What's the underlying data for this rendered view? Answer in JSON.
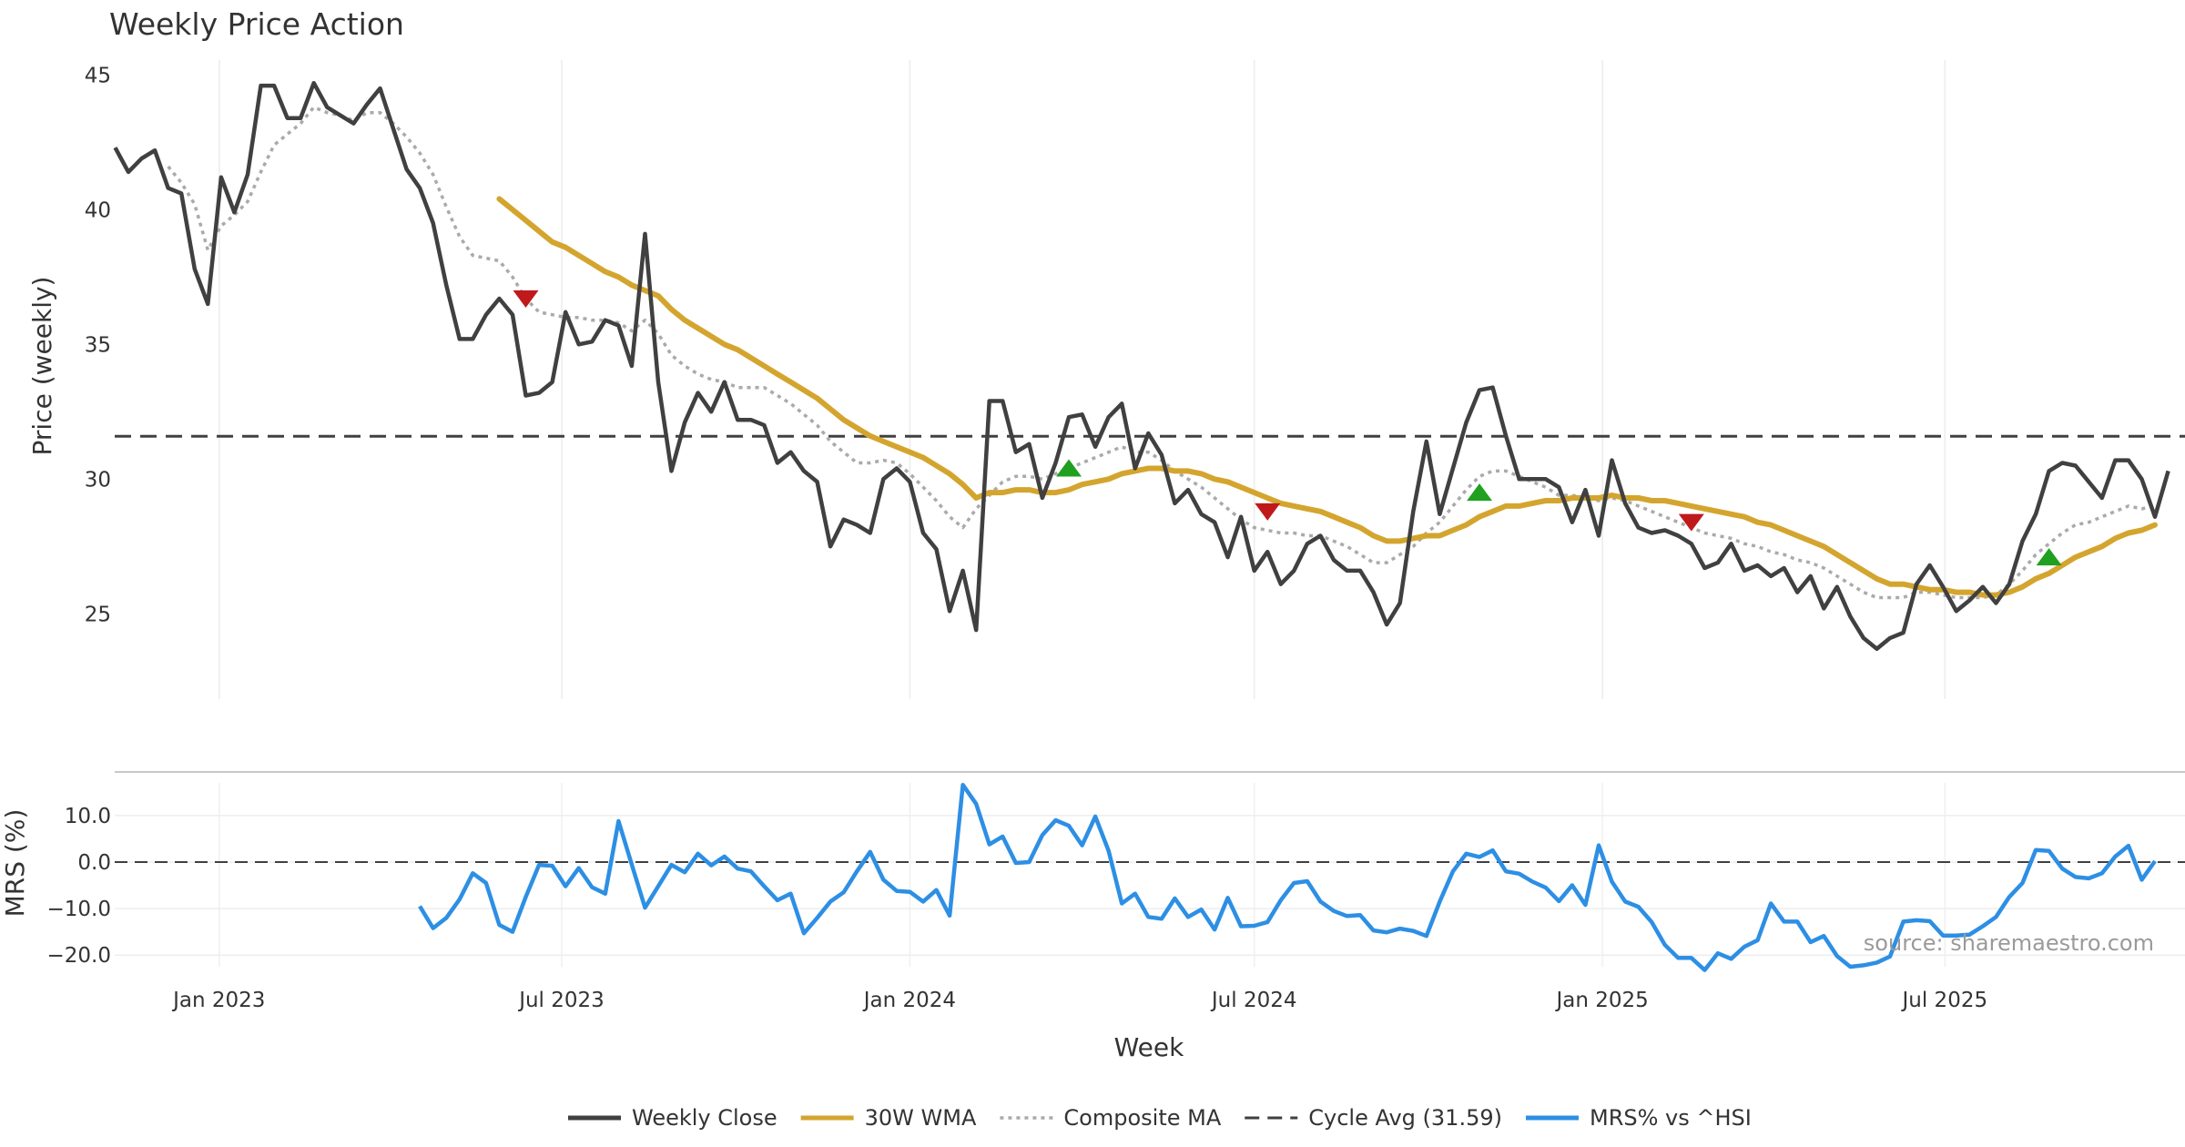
{
  "chart_data": [
    {
      "type": "line",
      "title": "Weekly Price Action",
      "xlabel": "",
      "ylabel": "Price (weekly)",
      "ylim": [
        22.5,
        47
      ],
      "yticks": [
        25,
        30,
        35,
        40,
        45
      ],
      "x_start": "2022-11-07",
      "x_step_days": 7,
      "series": [
        {
          "name": "Weekly Close",
          "color": "#404040",
          "values": [
            42.3,
            41.4,
            41.9,
            42.2,
            40.8,
            40.6,
            37.8,
            36.5,
            41.2,
            39.9,
            41.3,
            44.6,
            44.6,
            43.4,
            43.4,
            44.7,
            43.8,
            43.5,
            43.2,
            43.9,
            44.5,
            43.0,
            41.5,
            40.8,
            39.5,
            37.2,
            35.2,
            35.2,
            36.1,
            36.7,
            36.1,
            33.1,
            33.2,
            33.6,
            36.2,
            35.0,
            35.1,
            35.9,
            35.7,
            34.2,
            39.1,
            33.6,
            30.3,
            32.1,
            33.2,
            32.5,
            33.6,
            32.2,
            32.2,
            32.0,
            30.6,
            31.0,
            30.3,
            29.9,
            27.5,
            28.5,
            28.3,
            28.0,
            30.0,
            30.4,
            29.9,
            28.0,
            27.4,
            25.1,
            26.6,
            24.4,
            32.9,
            32.9,
            31.0,
            31.3,
            29.3,
            30.6,
            32.3,
            32.4,
            31.2,
            32.3,
            32.8,
            30.4,
            31.7,
            30.9,
            29.1,
            29.6,
            28.7,
            28.4,
            27.1,
            28.6,
            26.6,
            27.3,
            26.1,
            26.6,
            27.6,
            27.9,
            27.0,
            26.6,
            26.6,
            25.8,
            24.6,
            25.4,
            28.8,
            31.4,
            28.7,
            30.4,
            32.1,
            33.3,
            33.4,
            31.6,
            30.0,
            30.0,
            30.0,
            29.7,
            28.4,
            29.6,
            27.9,
            30.7,
            29.1,
            28.2,
            28.0,
            28.1,
            27.9,
            27.6,
            26.7,
            26.9,
            27.6,
            26.6,
            26.8,
            26.4,
            26.7,
            25.8,
            26.4,
            25.2,
            26.0,
            24.9,
            24.1,
            23.7,
            24.1,
            24.3,
            26.1,
            26.8,
            26.0,
            25.1,
            25.5,
            26.0,
            25.4,
            26.1,
            27.7,
            28.7,
            30.3,
            30.6,
            30.5,
            29.9,
            29.3,
            30.7,
            30.7,
            30.0,
            28.6,
            30.3
          ]
        },
        {
          "name": "30W WMA",
          "color": "#D4A52E",
          "values": [
            null,
            null,
            null,
            null,
            null,
            null,
            null,
            null,
            null,
            null,
            null,
            null,
            null,
            null,
            null,
            null,
            null,
            null,
            null,
            null,
            null,
            null,
            null,
            null,
            null,
            null,
            null,
            null,
            null,
            40.4,
            40.0,
            39.6,
            39.2,
            38.8,
            38.6,
            38.3,
            38.0,
            37.7,
            37.5,
            37.2,
            37.0,
            36.8,
            36.3,
            35.9,
            35.6,
            35.3,
            35.0,
            34.8,
            34.5,
            34.2,
            33.9,
            33.6,
            33.3,
            33.0,
            32.6,
            32.2,
            31.9,
            31.6,
            31.4,
            31.2,
            31.0,
            30.8,
            30.5,
            30.2,
            29.8,
            29.3,
            29.5,
            29.5,
            29.6,
            29.6,
            29.5,
            29.5,
            29.6,
            29.8,
            29.9,
            30.0,
            30.2,
            30.3,
            30.4,
            30.4,
            30.3,
            30.3,
            30.2,
            30.0,
            29.9,
            29.7,
            29.5,
            29.3,
            29.1,
            29.0,
            28.9,
            28.8,
            28.6,
            28.4,
            28.2,
            27.9,
            27.7,
            27.7,
            27.8,
            27.9,
            27.9,
            28.1,
            28.3,
            28.6,
            28.8,
            29.0,
            29.0,
            29.1,
            29.2,
            29.2,
            29.3,
            29.3,
            29.3,
            29.4,
            29.3,
            29.3,
            29.2,
            29.2,
            29.1,
            29.0,
            28.9,
            28.8,
            28.7,
            28.6,
            28.4,
            28.3,
            28.1,
            27.9,
            27.7,
            27.5,
            27.2,
            26.9,
            26.6,
            26.3,
            26.1,
            26.1,
            26.0,
            25.9,
            25.9,
            25.8,
            25.8,
            25.7,
            25.7,
            25.8,
            26.0,
            26.3,
            26.5,
            26.8,
            27.1,
            27.3,
            27.5,
            27.8,
            28.0,
            28.1,
            28.3
          ]
        },
        {
          "name": "Composite MA",
          "color": "#AAAAAA",
          "values": [
            null,
            null,
            null,
            null,
            41.6,
            41.0,
            40.2,
            38.5,
            39.4,
            39.8,
            40.3,
            41.4,
            42.4,
            42.8,
            43.2,
            43.8,
            43.6,
            43.5,
            43.3,
            43.6,
            43.6,
            43.2,
            42.7,
            42.1,
            41.3,
            40.1,
            39.0,
            38.3,
            38.2,
            38.1,
            37.5,
            36.7,
            36.2,
            36.1,
            36.0,
            36.0,
            35.9,
            35.9,
            35.8,
            35.5,
            35.9,
            35.4,
            34.6,
            34.2,
            33.9,
            33.7,
            33.6,
            33.4,
            33.4,
            33.4,
            33.1,
            32.8,
            32.4,
            32.0,
            31.4,
            31.0,
            30.6,
            30.6,
            30.7,
            30.6,
            30.2,
            29.7,
            29.2,
            28.6,
            28.2,
            28.9,
            29.4,
            29.9,
            30.1,
            30.1,
            30.0,
            30.2,
            30.4,
            30.6,
            30.8,
            31.0,
            31.2,
            31.0,
            31.0,
            30.7,
            30.3,
            30.0,
            29.7,
            29.3,
            28.9,
            28.5,
            28.2,
            28.1,
            28.0,
            28.0,
            27.9,
            27.9,
            27.7,
            27.5,
            27.2,
            26.9,
            26.9,
            27.2,
            27.5,
            28.0,
            28.4,
            29.0,
            29.6,
            30.1,
            30.3,
            30.3,
            30.1,
            29.9,
            29.7,
            29.4,
            29.4,
            29.3,
            29.2,
            29.3,
            29.2,
            29.0,
            28.8,
            28.6,
            28.4,
            28.2,
            28.0,
            27.9,
            27.8,
            27.6,
            27.5,
            27.3,
            27.2,
            27.0,
            26.9,
            26.7,
            26.4,
            26.1,
            25.8,
            25.6,
            25.6,
            25.6,
            25.8,
            25.8,
            25.7,
            25.6,
            25.6,
            25.6,
            25.7,
            26.1,
            26.6,
            27.2,
            27.6,
            28.0,
            28.3,
            28.4,
            28.6,
            28.8,
            29.0,
            28.9,
            29.0
          ]
        },
        {
          "name": "Cycle Avg (31.59)",
          "color": "#404040",
          "value": 31.59
        }
      ],
      "annotations": [
        {
          "type": "sell",
          "index": 31,
          "value": 36.7
        },
        {
          "type": "buy",
          "index": 72,
          "value": 30.4
        },
        {
          "type": "sell",
          "index": 87,
          "value": 28.8
        },
        {
          "type": "buy",
          "index": 103,
          "value": 29.5
        },
        {
          "type": "sell",
          "index": 119,
          "value": 28.4
        },
        {
          "type": "buy",
          "index": 146,
          "value": 27.1
        }
      ]
    },
    {
      "type": "line",
      "title": "",
      "xlabel": "Week",
      "ylabel": "MRS (%)",
      "ylim": [
        -25,
        19
      ],
      "yticks": [
        -20,
        -10,
        0,
        10
      ],
      "ytick_labels": [
        "−20.0",
        "−10.0",
        "0.0",
        "10.0"
      ],
      "x_tick_labels": [
        "Jan 2023",
        "Jul 2023",
        "Jan 2024",
        "Jul 2024",
        "Jan 2025",
        "Jul 2025"
      ],
      "x_tick_dates": [
        "2023-01-01",
        "2023-07-01",
        "2024-01-01",
        "2024-07-01",
        "2025-01-01",
        "2025-07-01"
      ],
      "reference_line": 0,
      "series": [
        {
          "name": "MRS% vs ^HSI",
          "color": "#2D8FE4",
          "start_index": 23,
          "values": [
            -9.5,
            -14.2,
            -12.0,
            -8.0,
            -2.4,
            -4.5,
            -13.5,
            -15.0,
            -7.5,
            -0.6,
            -0.8,
            -5.2,
            -1.3,
            -5.4,
            -6.8,
            8.8,
            -0.5,
            -9.8,
            -5.2,
            -0.6,
            -2.2,
            1.8,
            -0.7,
            1.2,
            -1.4,
            -2.0,
            -5.2,
            -8.2,
            -6.8,
            -15.3,
            -12.0,
            -8.5,
            -6.5,
            -2.0,
            2.2,
            -3.8,
            -6.2,
            -6.4,
            -8.5,
            -6.0,
            -11.5,
            16.6,
            12.5,
            3.8,
            5.5,
            -0.2,
            0.0,
            5.8,
            9.0,
            7.8,
            3.6,
            9.8,
            2.4,
            -8.9,
            -6.8,
            -11.8,
            -12.2,
            -7.8,
            -11.8,
            -10.2,
            -14.5,
            -7.7,
            -13.8,
            -13.7,
            -12.9,
            -8.2,
            -4.5,
            -4.1,
            -8.5,
            -10.5,
            -11.6,
            -11.4,
            -14.7,
            -15.1,
            -14.3,
            -14.8,
            -15.9,
            -8.5,
            -2.0,
            1.8,
            1.1,
            2.5,
            -2.0,
            -2.5,
            -4.2,
            -5.5,
            -8.4,
            -5.0,
            -9.2,
            3.6,
            -4.2,
            -8.5,
            -9.6,
            -12.9,
            -17.8,
            -20.6,
            -20.6,
            -23.2,
            -19.6,
            -20.8,
            -18.2,
            -16.8,
            -8.9,
            -12.8,
            -12.8,
            -17.2,
            -15.9,
            -20.2,
            -22.5,
            -22.2,
            -21.6,
            -20.3,
            -12.8,
            -12.5,
            -12.7,
            -15.8,
            -15.8,
            -15.6,
            -13.8,
            -11.8,
            -7.5,
            -4.5,
            2.6,
            2.4,
            -1.4,
            -3.2,
            -3.5,
            -2.4,
            1.2,
            3.5,
            -3.8,
            0.2
          ]
        }
      ]
    }
  ],
  "legend": {
    "items": [
      {
        "label": "Weekly Close",
        "style": "solid",
        "color": "#404040"
      },
      {
        "label": "30W WMA",
        "style": "solid",
        "color": "#D4A52E"
      },
      {
        "label": "Composite MA",
        "style": "dotted",
        "color": "#AAAAAA"
      },
      {
        "label": "Cycle Avg (31.59)",
        "style": "dashed",
        "color": "#404040"
      },
      {
        "label": "MRS% vs ^HSI",
        "style": "solid",
        "color": "#2D8FE4"
      }
    ]
  },
  "watermark": "source: sharemaestro.com"
}
